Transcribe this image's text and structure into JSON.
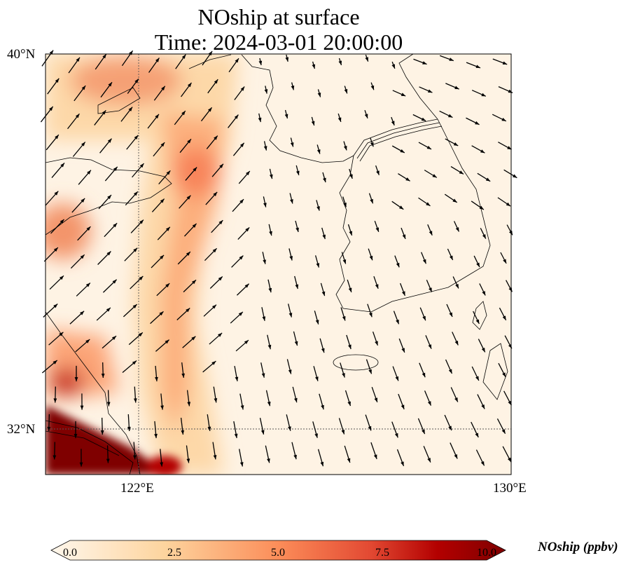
{
  "title": {
    "line1": "NOship at surface",
    "line2": "Time: 2024-03-01 20:00:00"
  },
  "map": {
    "extent": {
      "lon": [
        120,
        130
      ],
      "lat": [
        31,
        40
      ]
    },
    "lat_labels": [
      "40°N",
      "32°N"
    ],
    "lon_labels": [
      "122°E",
      "130°E"
    ],
    "gridlines": {
      "lon": [
        122
      ],
      "lat": [
        32
      ]
    }
  },
  "colorbar": {
    "label": "NOship (ppbv)",
    "ticks": [
      "0.0",
      "2.5",
      "5.0",
      "7.5",
      "10.0"
    ],
    "range": [
      0,
      10
    ],
    "extend": "both",
    "colormap": "OrRd",
    "colors": [
      "#fff7ec",
      "#fdd49e",
      "#fc8d59",
      "#d7301f",
      "#b30000",
      "#7f0000"
    ]
  }
}
